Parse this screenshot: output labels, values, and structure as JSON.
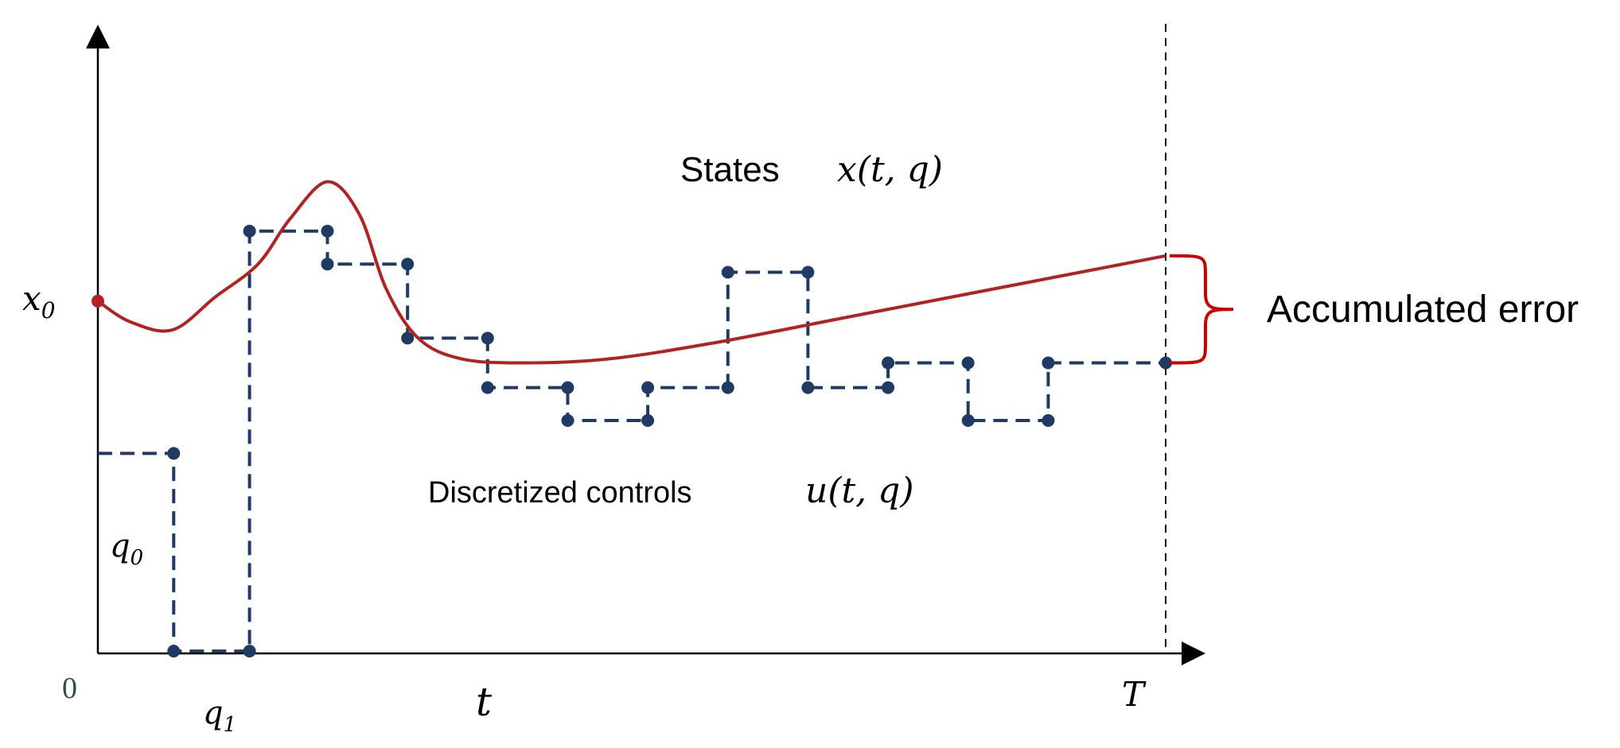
{
  "labels": {
    "x0": "x",
    "x0_sub": "0",
    "zero": "0",
    "q0": "q",
    "q0_sub": "0",
    "q1": "q",
    "q1_sub": "1",
    "t": "t",
    "T": "T",
    "states_text": "States",
    "states_func": "x(t, q)",
    "controls_text": "Discretized controls",
    "controls_func": "u(t, q)",
    "error_label": "Accumulated error"
  },
  "colors": {
    "axis": "#000000",
    "state_curve": "#b22222",
    "controls": "#1f3a63",
    "brace": "#cc0000",
    "text": "#000000",
    "zero_text": "#2f4f4f"
  },
  "controls_path": {
    "units": "data (time 0..1, value 0..1)",
    "points": [
      [
        0.0,
        0.42
      ],
      [
        0.071,
        0.42
      ],
      [
        0.071,
        -0.06
      ],
      [
        0.142,
        -0.06
      ],
      [
        0.142,
        0.96
      ],
      [
        0.215,
        0.96
      ],
      [
        0.215,
        0.88
      ],
      [
        0.29,
        0.88
      ],
      [
        0.29,
        0.7
      ],
      [
        0.365,
        0.7
      ],
      [
        0.365,
        0.58
      ],
      [
        0.44,
        0.58
      ],
      [
        0.44,
        0.5
      ],
      [
        0.515,
        0.5
      ],
      [
        0.515,
        0.58
      ],
      [
        0.59,
        0.58
      ],
      [
        0.59,
        0.86
      ],
      [
        0.665,
        0.86
      ],
      [
        0.665,
        0.58
      ],
      [
        0.74,
        0.58
      ],
      [
        0.74,
        0.64
      ],
      [
        0.815,
        0.64
      ],
      [
        0.815,
        0.5
      ],
      [
        0.89,
        0.5
      ],
      [
        0.89,
        0.64
      ],
      [
        1.0,
        0.64
      ]
    ],
    "dots": [
      [
        0.071,
        0.42
      ],
      [
        0.071,
        -0.06
      ],
      [
        0.142,
        -0.06
      ],
      [
        0.142,
        0.96
      ],
      [
        0.215,
        0.96
      ],
      [
        0.215,
        0.88
      ],
      [
        0.29,
        0.88
      ],
      [
        0.29,
        0.7
      ],
      [
        0.365,
        0.7
      ],
      [
        0.365,
        0.58
      ],
      [
        0.44,
        0.58
      ],
      [
        0.44,
        0.5
      ],
      [
        0.515,
        0.5
      ],
      [
        0.515,
        0.58
      ],
      [
        0.59,
        0.58
      ],
      [
        0.59,
        0.86
      ],
      [
        0.665,
        0.86
      ],
      [
        0.665,
        0.58
      ],
      [
        0.74,
        0.58
      ],
      [
        0.74,
        0.64
      ],
      [
        0.815,
        0.64
      ],
      [
        0.815,
        0.5
      ],
      [
        0.89,
        0.5
      ],
      [
        0.89,
        0.64
      ],
      [
        1.0,
        0.64
      ]
    ]
  },
  "state_curve": {
    "units": "data (time 0..1, value 0..1)",
    "points": [
      [
        0.0,
        0.79
      ],
      [
        0.03,
        0.74
      ],
      [
        0.07,
        0.72
      ],
      [
        0.11,
        0.8
      ],
      [
        0.15,
        0.88
      ],
      [
        0.18,
        0.99
      ],
      [
        0.215,
        1.08
      ],
      [
        0.245,
        1.0
      ],
      [
        0.27,
        0.82
      ],
      [
        0.3,
        0.7
      ],
      [
        0.34,
        0.65
      ],
      [
        0.4,
        0.64
      ],
      [
        0.48,
        0.65
      ],
      [
        0.58,
        0.69
      ],
      [
        0.7,
        0.75
      ],
      [
        0.82,
        0.81
      ],
      [
        0.92,
        0.86
      ],
      [
        1.0,
        0.9
      ]
    ]
  }
}
